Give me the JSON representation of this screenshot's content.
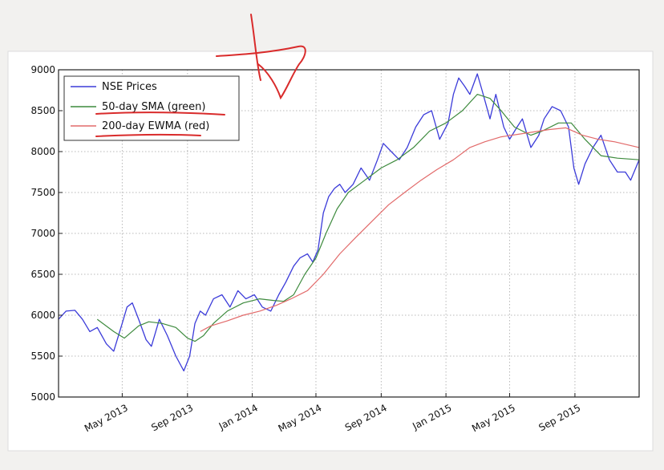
{
  "chart_data": {
    "type": "line",
    "title": "",
    "xlabel": "",
    "ylabel": "",
    "x_range": [
      "2013-01-01",
      "2015-12-31"
    ],
    "ylim": [
      5000,
      9000
    ],
    "y_ticks": [
      5000,
      5500,
      6000,
      6500,
      7000,
      7500,
      8000,
      8500,
      9000
    ],
    "x_ticks": [
      {
        "date": "2013-05-01",
        "label": "May 2013"
      },
      {
        "date": "2013-09-01",
        "label": "Sep 2013"
      },
      {
        "date": "2014-01-01",
        "label": "Jan 2014"
      },
      {
        "date": "2014-05-01",
        "label": "May 2014"
      },
      {
        "date": "2014-09-01",
        "label": "Sep 2014"
      },
      {
        "date": "2015-01-01",
        "label": "Jan 2015"
      },
      {
        "date": "2015-05-01",
        "label": "May 2015"
      },
      {
        "date": "2015-09-01",
        "label": "Sep 2015"
      }
    ],
    "grid": true,
    "legend_position": "top-left",
    "series": [
      {
        "name": "NSE Prices",
        "color": "#3b3bd9",
        "points": [
          [
            "2013-01-01",
            5950
          ],
          [
            "2013-01-15",
            6050
          ],
          [
            "2013-02-01",
            6060
          ],
          [
            "2013-02-15",
            5950
          ],
          [
            "2013-03-01",
            5800
          ],
          [
            "2013-03-15",
            5850
          ],
          [
            "2013-04-01",
            5650
          ],
          [
            "2013-04-15",
            5560
          ],
          [
            "2013-05-01",
            5900
          ],
          [
            "2013-05-10",
            6100
          ],
          [
            "2013-05-20",
            6150
          ],
          [
            "2013-06-01",
            5950
          ],
          [
            "2013-06-15",
            5700
          ],
          [
            "2013-06-25",
            5620
          ],
          [
            "2013-07-10",
            5950
          ],
          [
            "2013-07-25",
            5750
          ],
          [
            "2013-08-10",
            5500
          ],
          [
            "2013-08-25",
            5320
          ],
          [
            "2013-09-05",
            5500
          ],
          [
            "2013-09-15",
            5900
          ],
          [
            "2013-09-25",
            6050
          ],
          [
            "2013-10-05",
            6000
          ],
          [
            "2013-10-20",
            6200
          ],
          [
            "2013-11-05",
            6250
          ],
          [
            "2013-11-20",
            6100
          ],
          [
            "2013-12-05",
            6300
          ],
          [
            "2013-12-20",
            6200
          ],
          [
            "2014-01-05",
            6250
          ],
          [
            "2014-01-20",
            6100
          ],
          [
            "2014-02-05",
            6050
          ],
          [
            "2014-02-20",
            6250
          ],
          [
            "2014-03-05",
            6400
          ],
          [
            "2014-03-20",
            6600
          ],
          [
            "2014-04-01",
            6700
          ],
          [
            "2014-04-15",
            6750
          ],
          [
            "2014-04-25",
            6650
          ],
          [
            "2014-05-05",
            6800
          ],
          [
            "2014-05-15",
            7250
          ],
          [
            "2014-05-25",
            7450
          ],
          [
            "2014-06-05",
            7550
          ],
          [
            "2014-06-15",
            7600
          ],
          [
            "2014-06-25",
            7500
          ],
          [
            "2014-07-10",
            7600
          ],
          [
            "2014-07-25",
            7800
          ],
          [
            "2014-08-10",
            7650
          ],
          [
            "2014-08-25",
            7900
          ],
          [
            "2014-09-05",
            8100
          ],
          [
            "2014-09-20",
            8000
          ],
          [
            "2014-10-05",
            7900
          ],
          [
            "2014-10-20",
            8050
          ],
          [
            "2014-11-05",
            8300
          ],
          [
            "2014-11-20",
            8450
          ],
          [
            "2014-12-05",
            8500
          ],
          [
            "2014-12-20",
            8150
          ],
          [
            "2015-01-05",
            8350
          ],
          [
            "2015-01-15",
            8700
          ],
          [
            "2015-01-25",
            8900
          ],
          [
            "2015-02-05",
            8800
          ],
          [
            "2015-02-15",
            8700
          ],
          [
            "2015-03-01",
            8950
          ],
          [
            "2015-03-10",
            8750
          ],
          [
            "2015-03-25",
            8400
          ],
          [
            "2015-04-05",
            8700
          ],
          [
            "2015-04-20",
            8300
          ],
          [
            "2015-05-01",
            8150
          ],
          [
            "2015-05-15",
            8300
          ],
          [
            "2015-05-25",
            8400
          ],
          [
            "2015-06-10",
            8050
          ],
          [
            "2015-06-25",
            8200
          ],
          [
            "2015-07-05",
            8400
          ],
          [
            "2015-07-20",
            8550
          ],
          [
            "2015-08-05",
            8500
          ],
          [
            "2015-08-20",
            8300
          ],
          [
            "2015-08-30",
            7800
          ],
          [
            "2015-09-08",
            7600
          ],
          [
            "2015-09-20",
            7850
          ],
          [
            "2015-10-05",
            8050
          ],
          [
            "2015-10-20",
            8200
          ],
          [
            "2015-11-05",
            7900
          ],
          [
            "2015-11-20",
            7750
          ],
          [
            "2015-12-05",
            7750
          ],
          [
            "2015-12-15",
            7650
          ],
          [
            "2015-12-31",
            7900
          ]
        ]
      },
      {
        "name": "50-day SMA (green)",
        "color": "#3d8a3d",
        "points": [
          [
            "2013-03-15",
            5950
          ],
          [
            "2013-04-15",
            5800
          ],
          [
            "2013-05-05",
            5720
          ],
          [
            "2013-06-01",
            5870
          ],
          [
            "2013-06-20",
            5920
          ],
          [
            "2013-07-15",
            5900
          ],
          [
            "2013-08-10",
            5850
          ],
          [
            "2013-09-01",
            5720
          ],
          [
            "2013-09-15",
            5680
          ],
          [
            "2013-10-01",
            5750
          ],
          [
            "2013-10-20",
            5900
          ],
          [
            "2013-11-15",
            6050
          ],
          [
            "2013-12-15",
            6150
          ],
          [
            "2014-01-15",
            6200
          ],
          [
            "2014-02-10",
            6180
          ],
          [
            "2014-03-01",
            6170
          ],
          [
            "2014-03-20",
            6250
          ],
          [
            "2014-04-10",
            6500
          ],
          [
            "2014-05-01",
            6700
          ],
          [
            "2014-05-20",
            7000
          ],
          [
            "2014-06-10",
            7300
          ],
          [
            "2014-07-01",
            7500
          ],
          [
            "2014-08-01",
            7650
          ],
          [
            "2014-09-01",
            7800
          ],
          [
            "2014-10-01",
            7900
          ],
          [
            "2014-11-01",
            8050
          ],
          [
            "2014-12-01",
            8250
          ],
          [
            "2015-01-01",
            8350
          ],
          [
            "2015-02-01",
            8500
          ],
          [
            "2015-03-01",
            8700
          ],
          [
            "2015-03-25",
            8650
          ],
          [
            "2015-04-15",
            8500
          ],
          [
            "2015-05-10",
            8300
          ],
          [
            "2015-06-10",
            8200
          ],
          [
            "2015-07-01",
            8250
          ],
          [
            "2015-08-01",
            8350
          ],
          [
            "2015-08-25",
            8350
          ],
          [
            "2015-09-20",
            8150
          ],
          [
            "2015-10-20",
            7950
          ],
          [
            "2015-11-20",
            7920
          ],
          [
            "2015-12-31",
            7900
          ]
        ]
      },
      {
        "name": "200-day EWMA (red)",
        "color": "#e26a6a",
        "points": [
          [
            "2013-09-25",
            5800
          ],
          [
            "2013-10-15",
            5870
          ],
          [
            "2013-11-15",
            5930
          ],
          [
            "2013-12-15",
            6000
          ],
          [
            "2014-01-15",
            6050
          ],
          [
            "2014-02-15",
            6120
          ],
          [
            "2014-03-15",
            6200
          ],
          [
            "2014-04-15",
            6300
          ],
          [
            "2014-05-15",
            6500
          ],
          [
            "2014-06-15",
            6750
          ],
          [
            "2014-07-15",
            6950
          ],
          [
            "2014-08-15",
            7150
          ],
          [
            "2014-09-15",
            7350
          ],
          [
            "2014-10-15",
            7500
          ],
          [
            "2014-11-15",
            7650
          ],
          [
            "2014-12-15",
            7780
          ],
          [
            "2015-01-15",
            7900
          ],
          [
            "2015-02-15",
            8050
          ],
          [
            "2015-03-15",
            8120
          ],
          [
            "2015-04-15",
            8180
          ],
          [
            "2015-05-15",
            8210
          ],
          [
            "2015-06-15",
            8240
          ],
          [
            "2015-07-15",
            8270
          ],
          [
            "2015-08-15",
            8290
          ],
          [
            "2015-09-15",
            8200
          ],
          [
            "2015-10-15",
            8150
          ],
          [
            "2015-11-15",
            8120
          ],
          [
            "2015-12-31",
            8050
          ]
        ]
      }
    ]
  }
}
